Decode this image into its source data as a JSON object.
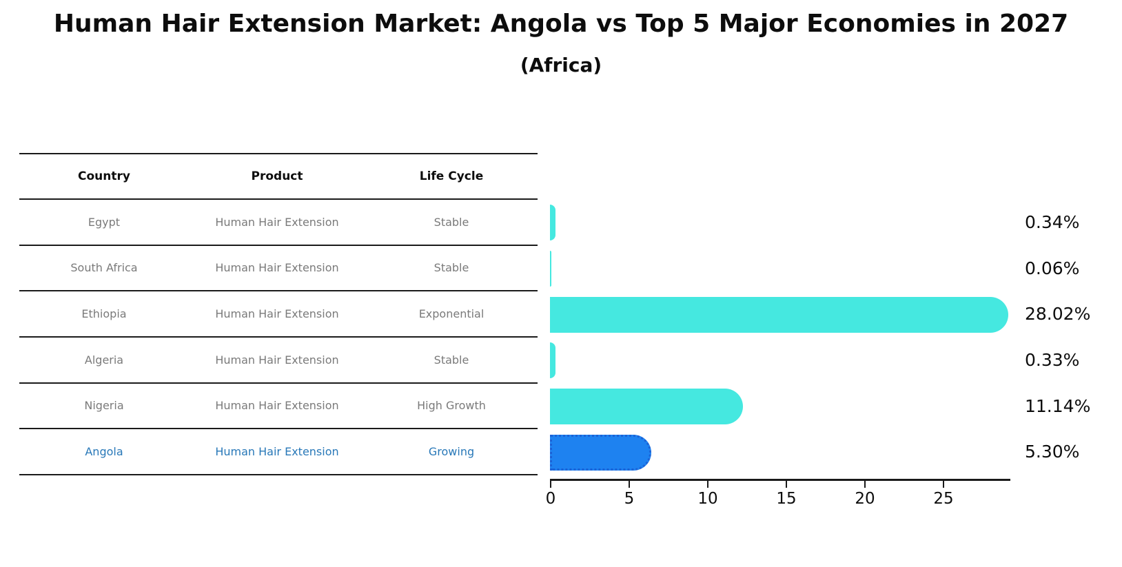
{
  "title": "Human Hair Extension Market: Angola vs Top 5 Major Economies in 2027",
  "subtitle": "(Africa)",
  "table": {
    "headers": [
      "Country",
      "Product",
      "Life Cycle"
    ],
    "rows": [
      {
        "country": "Egypt",
        "product": "Human Hair Extension",
        "life_cycle": "Stable",
        "highlight": false
      },
      {
        "country": "South Africa",
        "product": "Human Hair Extension",
        "life_cycle": "Stable",
        "highlight": false
      },
      {
        "country": "Ethiopia",
        "product": "Human Hair Extension",
        "life_cycle": "Exponential",
        "highlight": false
      },
      {
        "country": "Algeria",
        "product": "Human Hair Extension",
        "life_cycle": "Stable",
        "highlight": false
      },
      {
        "country": "Nigeria",
        "product": "Human Hair Extension",
        "life_cycle": "High Growth",
        "highlight": false
      },
      {
        "country": "Angola",
        "product": "Human Hair Extension",
        "life_cycle": "Growing",
        "highlight": true
      }
    ]
  },
  "chart_data": {
    "type": "bar",
    "orientation": "horizontal",
    "title": "Human Hair Extension Market: Angola vs Top 5 Major Economies in 2027",
    "subtitle": "(Africa)",
    "categories": [
      "Egypt",
      "South Africa",
      "Ethiopia",
      "Algeria",
      "Nigeria",
      "Angola"
    ],
    "values": [
      0.34,
      0.06,
      28.02,
      0.33,
      11.14,
      5.3
    ],
    "value_labels": [
      "0.34%",
      "0.06%",
      "28.02%",
      "0.33%",
      "11.14%",
      "5.30%"
    ],
    "x_ticks": [
      0,
      5,
      10,
      15,
      20,
      25
    ],
    "xlim": [
      0,
      29
    ],
    "grid": false,
    "legend": "none",
    "bar_color": "#45E8E0",
    "highlight_color": "#1E82F0",
    "highlight_border_color": "#1B62D6",
    "highlight_index": 5,
    "highlight_text_color": "#2878B8",
    "row_text_color": "#7A7A7A"
  }
}
